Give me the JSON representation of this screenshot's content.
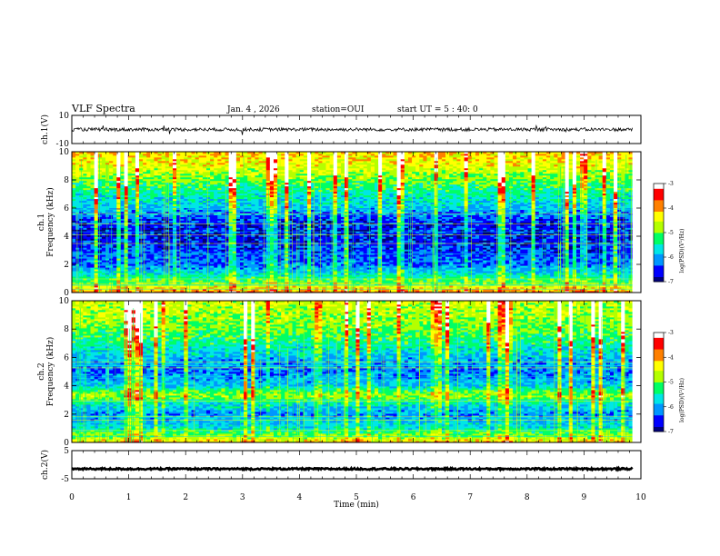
{
  "header": {
    "title": "VLF Spectra",
    "date": "Jan. 4 , 2026",
    "station": "station=OUI",
    "start": "start UT = 5 : 40: 0"
  },
  "colors": {
    "colormap": [
      "#00007a",
      "#0000ff",
      "#0096ff",
      "#00e6e6",
      "#00ff64",
      "#b4ff00",
      "#ffff00",
      "#ff8000",
      "#ff0000",
      "#ffffff"
    ],
    "trace": "#000000"
  },
  "chart_data": [
    {
      "type": "line",
      "name": "waveform-ch1",
      "ylabel": "ch.1(V)",
      "ylim": [
        -10,
        10
      ],
      "yticks": [
        "10",
        "-10"
      ],
      "xlim": [
        0,
        10
      ],
      "description_values": {
        "baseline": 0,
        "noise_amplitude": 1.2
      }
    },
    {
      "type": "heatmap",
      "name": "spectrogram-ch1",
      "ylabel": [
        "ch.1",
        "Frequency (kHz)"
      ],
      "ylim": [
        0,
        10
      ],
      "yticks": [
        "0",
        "2",
        "4",
        "6",
        "8",
        "10"
      ],
      "xlim": [
        0,
        9.85
      ],
      "colorbar": {
        "label": "log(PSD)(V²/Hz)",
        "range": [
          -7,
          -3
        ],
        "ticks": [
          "-3",
          "-4",
          "-5",
          "-6",
          "-7"
        ]
      },
      "frequency_profile_kHz": [
        {
          "f": 0.0,
          "level": -3.8
        },
        {
          "f": 0.5,
          "level": -4.6
        },
        {
          "f": 1.0,
          "level": -5.3
        },
        {
          "f": 1.5,
          "level": -5.8
        },
        {
          "f": 2.0,
          "level": -6.2
        },
        {
          "f": 3.0,
          "level": -6.4
        },
        {
          "f": 4.0,
          "level": -6.6
        },
        {
          "f": 5.0,
          "level": -6.5
        },
        {
          "f": 6.0,
          "level": -5.9
        },
        {
          "f": 7.0,
          "level": -5.5
        },
        {
          "f": 8.0,
          "level": -5.0
        },
        {
          "f": 9.0,
          "level": -4.5
        },
        {
          "f": 10.0,
          "level": -4.2
        }
      ]
    },
    {
      "type": "heatmap",
      "name": "spectrogram-ch2",
      "ylabel": [
        "ch.2",
        "Frequency (kHz)"
      ],
      "ylim": [
        0,
        10
      ],
      "yticks": [
        "0",
        "2",
        "4",
        "6",
        "8",
        "10"
      ],
      "xlim": [
        0,
        9.85
      ],
      "colorbar": {
        "label": "log(PSD)(V²/Hz)",
        "range": [
          -7,
          -3
        ],
        "ticks": [
          "-3",
          "-4",
          "-5",
          "-6",
          "-7"
        ]
      },
      "frequency_profile_kHz": [
        {
          "f": 0.0,
          "level": -4.2
        },
        {
          "f": 1.0,
          "level": -5.6
        },
        {
          "f": 2.0,
          "level": -6.1
        },
        {
          "f": 2.8,
          "level": -5.6
        },
        {
          "f": 3.2,
          "level": -4.8
        },
        {
          "f": 3.5,
          "level": -4.9
        },
        {
          "f": 4.0,
          "level": -5.8
        },
        {
          "f": 5.0,
          "level": -6.2
        },
        {
          "f": 6.0,
          "level": -5.9
        },
        {
          "f": 7.0,
          "level": -5.4
        },
        {
          "f": 8.0,
          "level": -5.0
        },
        {
          "f": 9.0,
          "level": -4.8
        },
        {
          "f": 10.0,
          "level": -4.6
        }
      ]
    },
    {
      "type": "line",
      "name": "waveform-ch2",
      "ylabel": "ch.2(V)",
      "ylim": [
        -5,
        5
      ],
      "yticks": [
        "5",
        "-5"
      ],
      "xlim": [
        0,
        10
      ],
      "description_values": {
        "baseline": -1.5,
        "noise_amplitude": 0.3
      }
    }
  ],
  "xaxis": {
    "label": "Time (min)",
    "range": [
      0,
      10
    ],
    "ticks": [
      "0",
      "1",
      "2",
      "3",
      "4",
      "5",
      "6",
      "7",
      "8",
      "9",
      "10"
    ]
  }
}
